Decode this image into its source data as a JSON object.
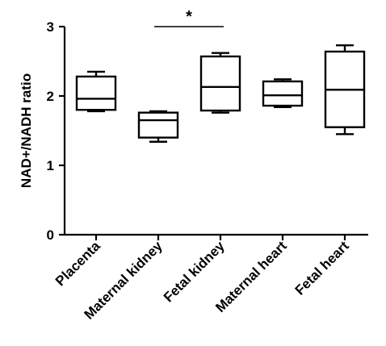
{
  "chart_data": {
    "type": "box",
    "title": "",
    "xlabel": "",
    "ylabel": "NAD+/NADH ratio",
    "ylim": [
      0,
      3
    ],
    "yticks": [
      "0",
      "1",
      "2",
      "3"
    ],
    "grid": false,
    "legend": "none",
    "categories": [
      "Placenta",
      "Maternal kidney",
      "Fetal kidney",
      "Maternal heart",
      "Fetal heart"
    ],
    "boxes": [
      {
        "name": "Placenta",
        "min": 1.78,
        "q1": 1.8,
        "median": 1.96,
        "q3": 2.28,
        "max": 2.35
      },
      {
        "name": "Maternal kidney",
        "min": 1.34,
        "q1": 1.4,
        "median": 1.65,
        "q3": 1.76,
        "max": 1.78
      },
      {
        "name": "Fetal kidney",
        "min": 1.76,
        "q1": 1.79,
        "median": 2.13,
        "q3": 2.57,
        "max": 2.62
      },
      {
        "name": "Maternal heart",
        "min": 1.84,
        "q1": 1.86,
        "median": 2.01,
        "q3": 2.21,
        "max": 2.24
      },
      {
        "name": "Fetal heart",
        "min": 1.45,
        "q1": 1.55,
        "median": 2.09,
        "q3": 2.64,
        "max": 2.73
      }
    ],
    "annotations": [
      {
        "type": "significance",
        "from": "Maternal kidney",
        "to": "Fetal kidney",
        "text": "*"
      }
    ]
  }
}
